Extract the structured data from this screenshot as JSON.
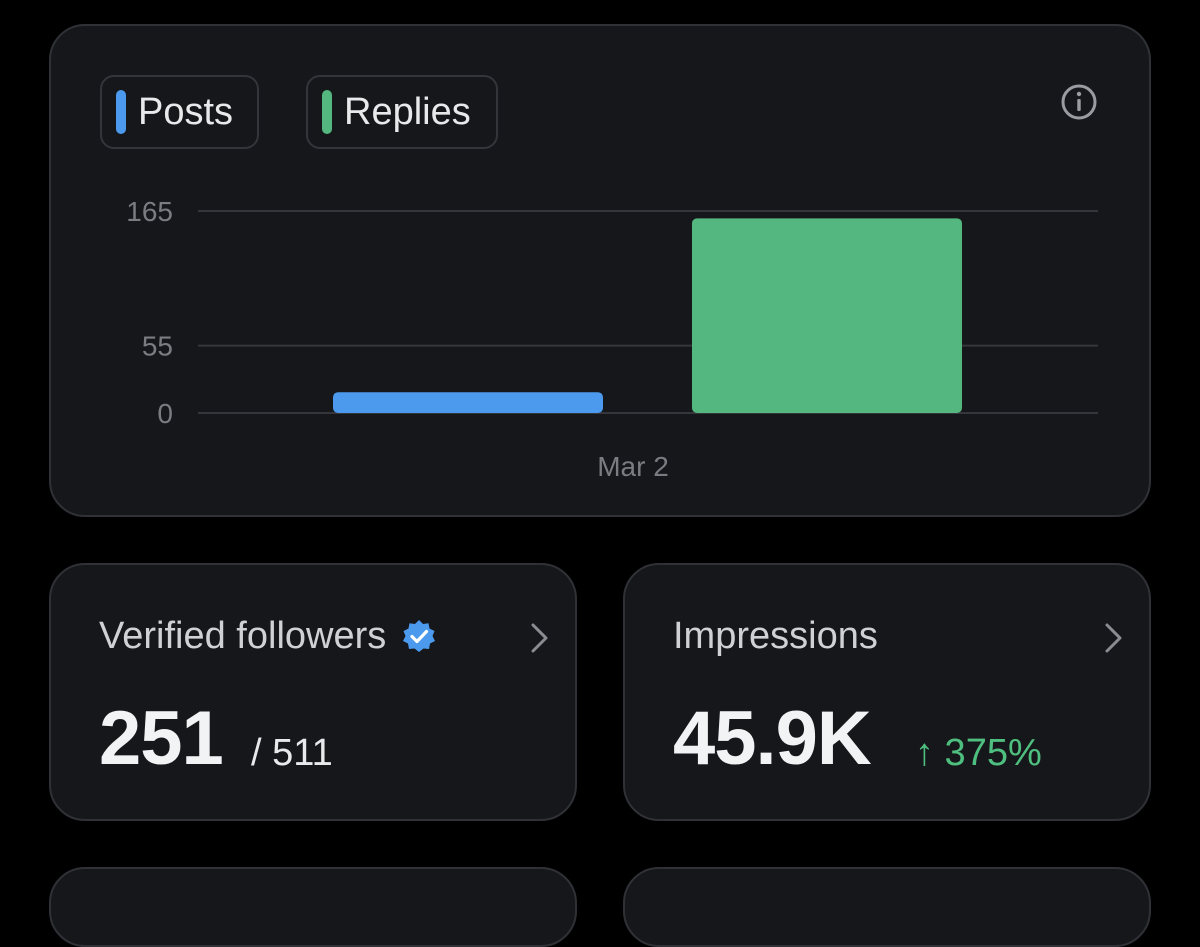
{
  "colors": {
    "posts": "#4c9aed",
    "replies": "#54b77f",
    "verified": "#4c9aed",
    "change_up": "#4fbf7f"
  },
  "chart_data": {
    "type": "bar",
    "categories": [
      "Mar 2"
    ],
    "series": [
      {
        "name": "Posts",
        "values": [
          17
        ]
      },
      {
        "name": "Replies",
        "values": [
          159
        ]
      }
    ],
    "y_ticks": [
      0,
      55,
      165
    ],
    "ylim": [
      0,
      165
    ],
    "grid": true
  },
  "chart_labels": {
    "tick_0": "0",
    "tick_55": "55",
    "tick_165": "165",
    "x_label": "Mar 2"
  },
  "info_icon": "info-icon",
  "verified_followers": {
    "title": "Verified followers",
    "value": "251",
    "total": "/ 511",
    "icon": "verified-badge-icon"
  },
  "impressions": {
    "title": "Impressions",
    "value": "45.9K",
    "change": "↑ 375%"
  }
}
